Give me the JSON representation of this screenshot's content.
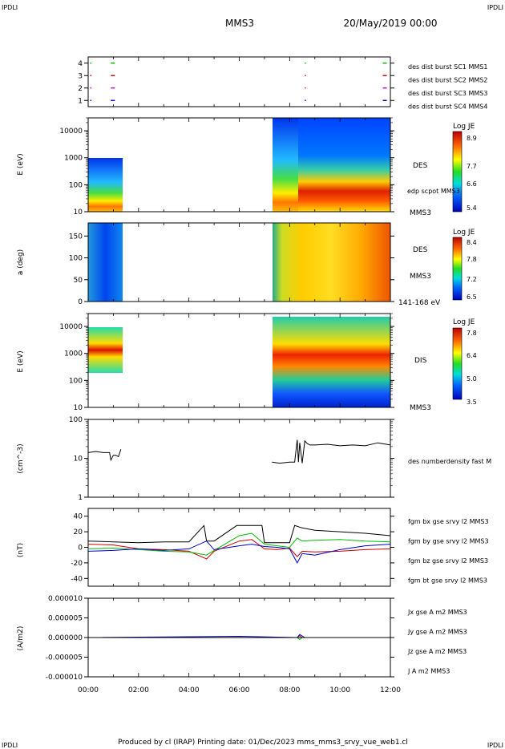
{
  "corner_labels": {
    "top_left": "IPDLI",
    "top_right": "IPDLI",
    "bottom_left": "IPDLI",
    "bottom_right": "IPDLI"
  },
  "title": "MMS3",
  "date": "20/May/2019 00:00",
  "footer": "Produced by cl (IRAP)   Printing date: 01/Dec/2023   mms_mms3_srvy_vue_web1.cl",
  "colors": {
    "c_mms1": "#0000cc",
    "c_mms2": "#cc00cc",
    "c_mms3": "#cc0000",
    "c_mms4": "#00bb00",
    "c_black": "#000000"
  },
  "chart_data": [
    {
      "type": "scatter",
      "panel": "burst",
      "ylim": [
        0.5,
        4.5
      ],
      "yticks": [
        "1",
        "2",
        "3",
        "4"
      ],
      "legend": [
        "des dist burst SC1 MMS1",
        "des dist burst SC2 MMS2",
        "des dist burst SC3 MMS3",
        "des dist burst SC4 MMS4"
      ],
      "series": [
        {
          "name": "des dist burst SC1 MMS1",
          "color": "#0000cc",
          "level": 1,
          "times": [
            0.08,
            0.9,
            8.6,
            11.7
          ]
        },
        {
          "name": "des dist burst SC2 MMS2",
          "color": "#cc00cc",
          "level": 2,
          "times": [
            0.08,
            0.9,
            8.6,
            11.7
          ]
        },
        {
          "name": "des dist burst SC3 MMS3",
          "color": "#cc0000",
          "level": 3,
          "times": [
            0.08,
            0.9,
            8.6,
            11.7
          ]
        },
        {
          "name": "des dist burst SC4 MMS4",
          "color": "#00bb00",
          "level": 4,
          "times": [
            0.08,
            0.9,
            8.6,
            11.7
          ]
        }
      ]
    },
    {
      "type": "heatmap",
      "panel": "des_energy",
      "ylabel": "E (eV)",
      "yscale": "log",
      "ylim": [
        10,
        30000
      ],
      "yticks": [
        "10",
        "100",
        "1000",
        "10000"
      ],
      "side_labels": [
        "DES",
        "edp scpot MMS3",
        "MMS3"
      ],
      "colorbar": {
        "title": "Log JE",
        "ticks": [
          "8.9",
          "7.7",
          "6.6",
          "5.4"
        ]
      },
      "data_intervals": [
        [
          0.0,
          1.35
        ],
        [
          7.3,
          12.0
        ]
      ]
    },
    {
      "type": "heatmap",
      "panel": "des_pitch",
      "ylabel": "a (deg)",
      "ylim": [
        0,
        180
      ],
      "yticks": [
        "0",
        "50",
        "100",
        "150"
      ],
      "side_labels": [
        "DES",
        "MMS3",
        "141-168 eV"
      ],
      "colorbar": {
        "title": "Log JE",
        "ticks": [
          "8.4",
          "7.8",
          "7.2",
          "6.5"
        ]
      },
      "data_intervals": [
        [
          0.0,
          1.35
        ],
        [
          7.3,
          12.0
        ]
      ]
    },
    {
      "type": "heatmap",
      "panel": "dis_energy",
      "ylabel": "E (eV)",
      "yscale": "log",
      "ylim": [
        10,
        30000
      ],
      "yticks": [
        "10",
        "100",
        "1000",
        "10000"
      ],
      "side_labels": [
        "DIS",
        "MMS3"
      ],
      "colorbar": {
        "title": "Log JE",
        "ticks": [
          "7.8",
          "6.4",
          "5.0",
          "3.5"
        ]
      },
      "data_intervals": [
        [
          0.0,
          1.35
        ],
        [
          7.3,
          12.0
        ]
      ]
    },
    {
      "type": "line",
      "panel": "density",
      "ylabel": "(cm^-3)",
      "yscale": "log",
      "ylim": [
        1,
        100
      ],
      "yticks": [
        "1",
        "10",
        "100"
      ],
      "legend": [
        "des numberdensity fast M"
      ],
      "series": [
        {
          "name": "des numberdensity fast M",
          "color": "#000000",
          "x": [
            0.0,
            0.3,
            0.6,
            0.85,
            0.9,
            1.0,
            1.1,
            1.2,
            1.3,
            7.3,
            7.6,
            8.0,
            8.2,
            8.3,
            8.35,
            8.4,
            8.5,
            8.6,
            8.7,
            8.8,
            9.0,
            9.5,
            10.0,
            10.5,
            11.0,
            11.5,
            12.0
          ],
          "values": [
            14,
            15,
            14,
            14,
            9,
            12,
            12,
            11,
            17,
            8,
            7.5,
            8,
            8,
            30,
            8,
            25,
            7.5,
            28,
            24,
            22,
            22,
            23,
            21,
            22,
            21,
            25,
            22
          ]
        }
      ]
    },
    {
      "type": "line",
      "panel": "fgm",
      "ylabel": "(nT)",
      "ylim": [
        -50,
        50
      ],
      "yticks": [
        "-40",
        "-20",
        "0",
        "20",
        "40"
      ],
      "legend": [
        "fgm bx gse srvy l2 MMS3",
        "fgm by gse srvy l2 MMS3",
        "fgm bz gse srvy l2 MMS3",
        "fgm bt gse srvy l2 MMS3"
      ],
      "series": [
        {
          "name": "fgm bx gse srvy l2 MMS3",
          "color": "#cc0000",
          "x": [
            0,
            1,
            2,
            3,
            4,
            4.7,
            5,
            6,
            6.5,
            7,
            7.5,
            8,
            8.3,
            8.5,
            9,
            10,
            11,
            12
          ],
          "values": [
            4,
            3,
            -2,
            -3,
            -5,
            -15,
            -5,
            8,
            10,
            -2,
            -3,
            -1,
            -12,
            -5,
            -6,
            -5,
            -3,
            -2
          ]
        },
        {
          "name": "fgm by gse srvy l2 MMS3",
          "color": "#00bb00",
          "x": [
            0,
            1,
            2,
            3,
            4,
            4.7,
            5,
            6,
            6.5,
            7,
            7.5,
            8,
            8.3,
            8.5,
            9,
            10,
            11,
            12
          ],
          "values": [
            -2,
            -1,
            -3,
            -5,
            -6,
            -10,
            -4,
            15,
            18,
            4,
            2,
            0,
            12,
            8,
            9,
            10,
            8,
            7
          ]
        },
        {
          "name": "fgm bz gse srvy l2 MMS3",
          "color": "#0000cc",
          "x": [
            0,
            1,
            2,
            3,
            4,
            4.7,
            5,
            6,
            6.5,
            7,
            7.5,
            8,
            8.3,
            8.5,
            9,
            10,
            11,
            12
          ],
          "values": [
            -5,
            -4,
            -2,
            -4,
            -2,
            8,
            -3,
            2,
            4,
            1,
            0,
            -2,
            -20,
            -8,
            -10,
            -3,
            2,
            4
          ]
        },
        {
          "name": "fgm bt gse srvy l2 MMS3",
          "color": "#000000",
          "x": [
            0,
            1,
            2,
            3,
            4,
            4.6,
            4.7,
            5,
            5.9,
            6,
            6.9,
            7,
            8,
            8.2,
            8.5,
            9,
            10,
            11,
            12
          ],
          "values": [
            8,
            7,
            6,
            7,
            7,
            28,
            8,
            8,
            28,
            28,
            28,
            6,
            6,
            28,
            25,
            22,
            20,
            18,
            15
          ]
        }
      ]
    },
    {
      "type": "line",
      "panel": "current",
      "ylabel": "(A/m2)",
      "ylim": [
        -1e-05,
        1e-05
      ],
      "yticks": [
        "-0.000010",
        "-0.000005",
        "0.000000",
        "0.000005",
        "0.000010"
      ],
      "legend": [
        "Jx gse A m2 MMS3",
        "Jy gse A m2 MMS3",
        "Jz gse A m2 MMS3",
        "J A m2 MMS3"
      ],
      "series": [
        {
          "name": "Jx gse A m2 MMS3",
          "color": "#cc0000",
          "x": [
            0,
            8.3,
            8.4,
            8.5,
            12
          ],
          "values": [
            0,
            0,
            5e-07,
            0,
            0
          ]
        },
        {
          "name": "Jy gse A m2 MMS3",
          "color": "#00bb00",
          "x": [
            0,
            8.3,
            8.4,
            8.5,
            12
          ],
          "values": [
            0,
            0,
            -5e-07,
            0,
            0
          ]
        },
        {
          "name": "Jz gse A m2 MMS3",
          "color": "#0000cc",
          "x": [
            0,
            6.0,
            8.3,
            8.4,
            8.6,
            12
          ],
          "values": [
            0,
            3e-07,
            0,
            8e-07,
            0,
            0
          ]
        },
        {
          "name": "J A m2 MMS3",
          "color": "#000000",
          "x": [
            0,
            12
          ],
          "values": [
            0,
            0
          ]
        }
      ]
    }
  ],
  "x_axis": {
    "xlim": [
      0,
      12
    ],
    "ticks": [
      "00:00",
      "02:00",
      "04:00",
      "06:00",
      "08:00",
      "10:00",
      "12:00"
    ]
  }
}
